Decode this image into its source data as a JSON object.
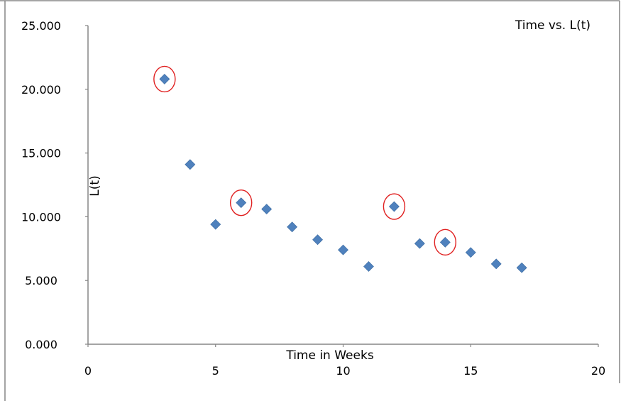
{
  "chart_data": {
    "type": "scatter",
    "title": "Time vs. L(t)",
    "xlabel": "Time in Weeks",
    "ylabel": "L(t)",
    "xlim": [
      0,
      20
    ],
    "ylim": [
      0,
      25
    ],
    "x_ticks": [
      0,
      5,
      10,
      15,
      20
    ],
    "x_tick_labels": [
      "0",
      "5",
      "10",
      "15",
      "20"
    ],
    "y_ticks": [
      0,
      5,
      10,
      15,
      20,
      25
    ],
    "y_tick_labels": [
      "0.000",
      "5.000",
      "10.000",
      "15.000",
      "20.000",
      "25.000"
    ],
    "grid": false,
    "legend": "none",
    "marker": "diamond",
    "series": [
      {
        "points": [
          {
            "x": 3,
            "y": 20.8
          },
          {
            "x": 4,
            "y": 14.1
          },
          {
            "x": 5,
            "y": 9.4
          },
          {
            "x": 6,
            "y": 11.1
          },
          {
            "x": 7,
            "y": 10.6
          },
          {
            "x": 8,
            "y": 9.2
          },
          {
            "x": 9,
            "y": 8.2
          },
          {
            "x": 10,
            "y": 7.4
          },
          {
            "x": 11,
            "y": 6.1
          },
          {
            "x": 12,
            "y": 10.8
          },
          {
            "x": 13,
            "y": 7.9
          },
          {
            "x": 14,
            "y": 8.0
          },
          {
            "x": 15,
            "y": 7.2
          },
          {
            "x": 16,
            "y": 6.3
          },
          {
            "x": 17,
            "y": 6.0
          }
        ]
      }
    ],
    "highlighted_points": [
      {
        "x": 3,
        "y": 20.8
      },
      {
        "x": 6,
        "y": 11.1
      },
      {
        "x": 12,
        "y": 10.8
      },
      {
        "x": 14,
        "y": 8.0
      }
    ]
  },
  "colors": {
    "marker": "#4f81bd",
    "highlight_ring": "#e02020",
    "axis": "#868686",
    "frame": "#868686"
  }
}
